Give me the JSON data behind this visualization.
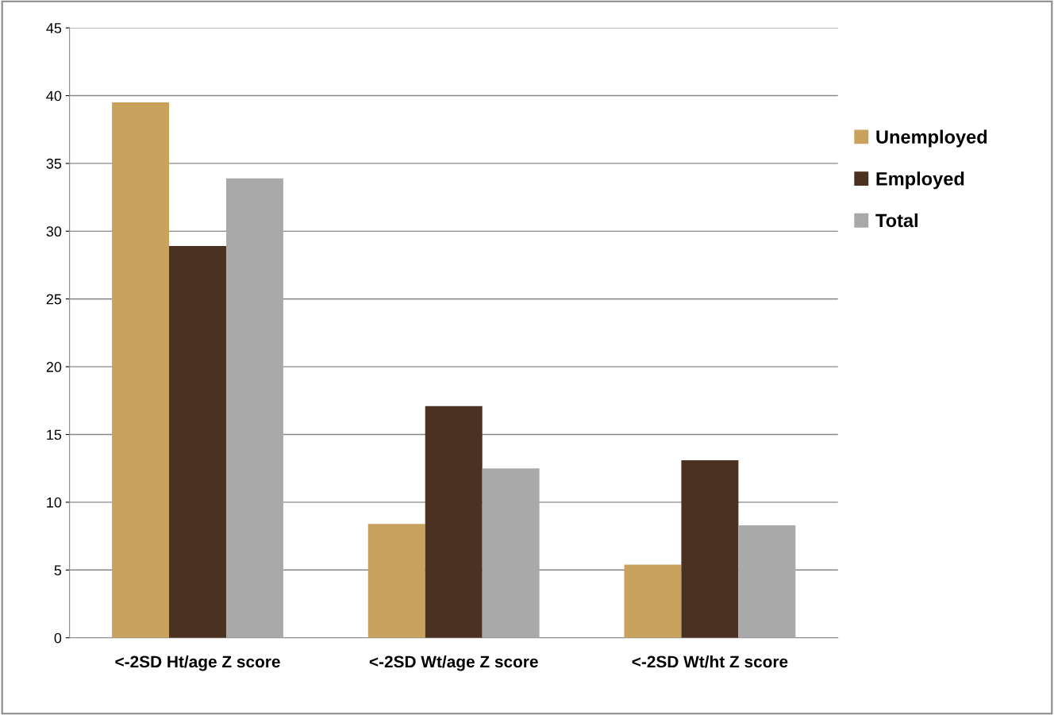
{
  "chart_data": {
    "type": "bar",
    "categories": [
      "<-2SD Ht/age Z score",
      "<-2SD Wt/age Z score",
      "<-2SD Wt/ht Z score"
    ],
    "series": [
      {
        "name": "Unemployed",
        "color": "#c9a25e",
        "values": [
          39.5,
          8.4,
          5.4
        ]
      },
      {
        "name": "Employed",
        "color": "#4a3120",
        "values": [
          28.9,
          17.1,
          13.1
        ]
      },
      {
        "name": "Total",
        "color": "#a9a9a9",
        "values": [
          33.9,
          12.5,
          8.3
        ]
      }
    ],
    "ylim": [
      0,
      45
    ],
    "yticks": [
      0,
      5,
      10,
      15,
      20,
      25,
      30,
      35,
      40,
      45
    ],
    "grid": "y",
    "legend": "right"
  }
}
